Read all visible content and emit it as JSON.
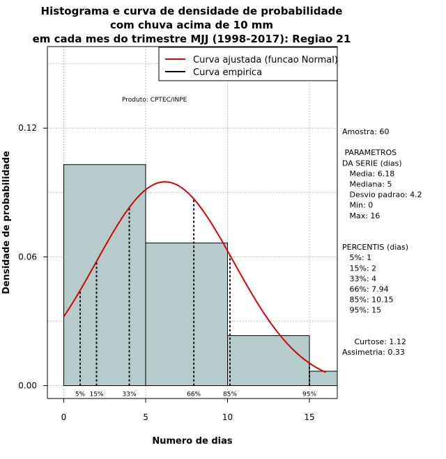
{
  "chart_data": {
    "type": "bar",
    "title_lines": [
      "Histograma e curva de densidade de probabilidade",
      "com chuva acima de 10 mm",
      "em cada mes do trimestre MJJ (1998-2017): Regiao 21"
    ],
    "xlabel": "Numero de dias",
    "ylabel": "Densidade de probabilidade",
    "xlim": [
      -1,
      16.7
    ],
    "ylim": [
      -0.006,
      0.158
    ],
    "x_ticks": [
      0,
      5,
      10,
      15
    ],
    "x_tick_labels": [
      "0",
      "5",
      "10",
      "15"
    ],
    "y_ticks": [
      0.0,
      0.06,
      0.12
    ],
    "y_tick_labels": [
      "0.00",
      "0.06",
      "0.12"
    ],
    "grid": true,
    "grid_x": [
      0,
      5,
      10,
      15
    ],
    "grid_y": [
      0.0,
      0.03,
      0.06,
      0.09,
      0.12,
      0.15
    ],
    "bins": [
      {
        "start": 0,
        "end": 5,
        "density": 0.103
      },
      {
        "start": 5,
        "end": 10,
        "density": 0.0665
      },
      {
        "start": 10,
        "end": 15,
        "density": 0.0233
      },
      {
        "start": 15,
        "end": 20,
        "density": 0.0067
      }
    ],
    "bar_color": "#b6cccc",
    "curve_color": "#dd0000",
    "normal_fit": {
      "mean": 6.18,
      "sd": 4.2,
      "x_from": 0,
      "x_to": 16
    },
    "percentile_lines": [
      {
        "label": "5%",
        "x": 1
      },
      {
        "label": "15%",
        "x": 2
      },
      {
        "label": "33%",
        "x": 4
      },
      {
        "label": "66%",
        "x": 7.94
      },
      {
        "label": "85%",
        "x": 10.15
      },
      {
        "label": "95%",
        "x": 15
      }
    ],
    "legend": {
      "position": "top-right",
      "entries": [
        {
          "label": "Curva ajustada (funcao Normal)",
          "color": "#dd0000"
        },
        {
          "label": "Curva empirica",
          "color": "#000000"
        }
      ]
    },
    "annotation": "Produto: CPTEC/INPE"
  },
  "stats_panel": {
    "lines": [
      "Amostra: 60",
      "",
      " PARAMETROS",
      "DA SERIE (dias)",
      "   Media: 6.18",
      "   Mediana: 5",
      "   Desvio padrao: 4.2",
      "   Min: 0",
      "   Max: 16",
      "",
      "",
      "PERCENTIS (dias)",
      "   5%: 1",
      "   15%: 2",
      "   33%: 4",
      "   66%: 7.94",
      "   85%: 10.15",
      "   95%: 15",
      "",
      "",
      "     Curtose: 1.12",
      "Assimetria: 0.33"
    ]
  }
}
